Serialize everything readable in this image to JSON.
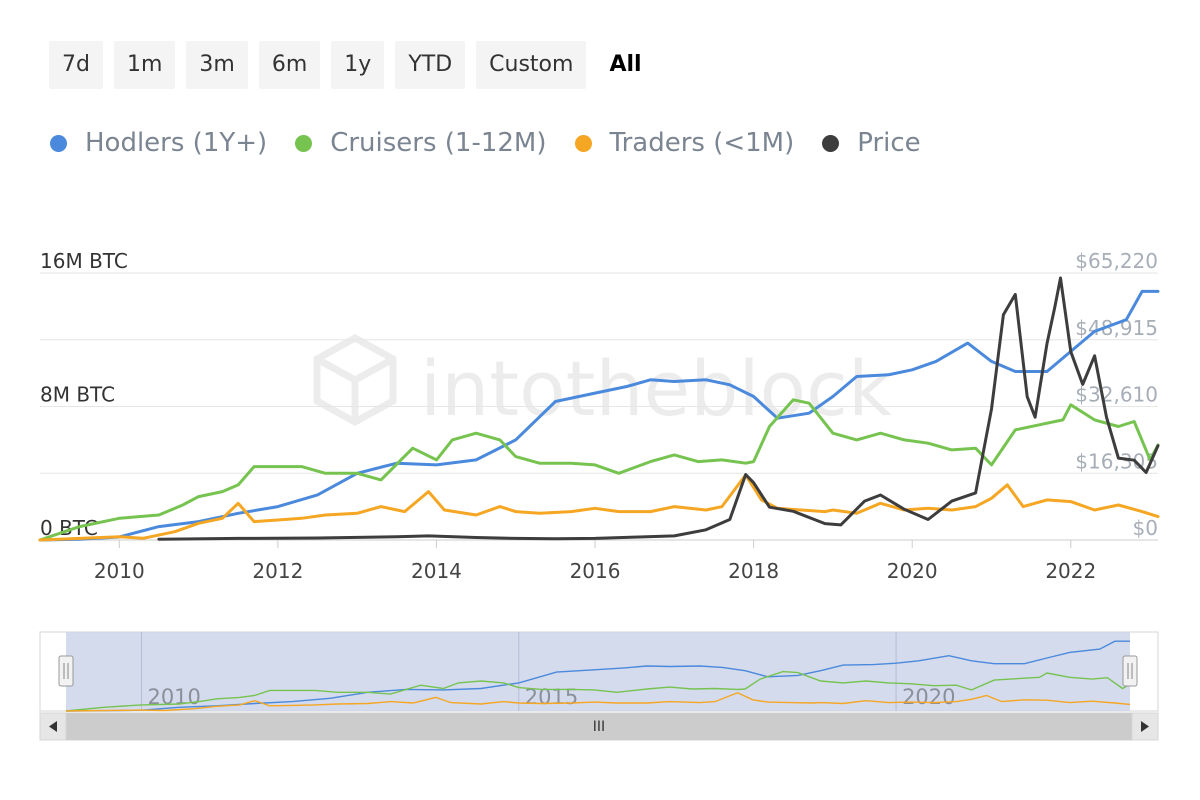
{
  "range_selector": {
    "buttons": [
      "7d",
      "1m",
      "3m",
      "6m",
      "1y",
      "YTD",
      "Custom",
      "All"
    ],
    "active": "All"
  },
  "colors": {
    "hodlers": "#4a89dc",
    "cruisers": "#76c350",
    "traders": "#f5a623",
    "price": "#3d3d3d"
  },
  "chart_data": {
    "type": "line",
    "xlabel": "",
    "ylabel": "",
    "legend_position": "top-left",
    "x_range": [
      2009.0,
      2023.1
    ],
    "x_ticks": [
      "2010",
      "2012",
      "2014",
      "2016",
      "2018",
      "2020",
      "2022"
    ],
    "y_left": {
      "range": [
        0,
        16000000
      ],
      "ticks": [
        "0 BTC",
        "8M BTC",
        "16M BTC"
      ]
    },
    "y_right": {
      "range": [
        0,
        65220
      ],
      "ticks": [
        "$0",
        "$16,305",
        "$32,610",
        "$48,915",
        "$65,220"
      ]
    },
    "watermark": "intotheblock",
    "series": [
      {
        "name": "Hodlers (1Y+)",
        "axis": "left",
        "color": "#4a89dc",
        "points": [
          [
            2009.0,
            0
          ],
          [
            2009.5,
            50000
          ],
          [
            2010.0,
            180000
          ],
          [
            2010.5,
            800000
          ],
          [
            2011.0,
            1100000
          ],
          [
            2011.5,
            1600000
          ],
          [
            2012.0,
            2000000
          ],
          [
            2012.5,
            2700000
          ],
          [
            2013.0,
            4000000
          ],
          [
            2013.5,
            4600000
          ],
          [
            2014.0,
            4500000
          ],
          [
            2014.5,
            4800000
          ],
          [
            2015.0,
            6000000
          ],
          [
            2015.5,
            8300000
          ],
          [
            2016.0,
            8800000
          ],
          [
            2016.4,
            9200000
          ],
          [
            2016.7,
            9600000
          ],
          [
            2017.0,
            9500000
          ],
          [
            2017.4,
            9600000
          ],
          [
            2017.7,
            9300000
          ],
          [
            2018.0,
            8600000
          ],
          [
            2018.3,
            7300000
          ],
          [
            2018.7,
            7600000
          ],
          [
            2019.0,
            8600000
          ],
          [
            2019.3,
            9800000
          ],
          [
            2019.7,
            9900000
          ],
          [
            2020.0,
            10200000
          ],
          [
            2020.3,
            10700000
          ],
          [
            2020.7,
            11800000
          ],
          [
            2021.0,
            10700000
          ],
          [
            2021.3,
            10100000
          ],
          [
            2021.7,
            10100000
          ],
          [
            2022.0,
            11300000
          ],
          [
            2022.3,
            12500000
          ],
          [
            2022.7,
            13200000
          ],
          [
            2022.9,
            14900000
          ],
          [
            2023.1,
            14900000
          ]
        ]
      },
      {
        "name": "Cruisers (1-12M)",
        "axis": "left",
        "color": "#76c350",
        "points": [
          [
            2009.0,
            0
          ],
          [
            2009.5,
            800000
          ],
          [
            2010.0,
            1300000
          ],
          [
            2010.5,
            1500000
          ],
          [
            2010.8,
            2100000
          ],
          [
            2011.0,
            2600000
          ],
          [
            2011.3,
            2900000
          ],
          [
            2011.5,
            3300000
          ],
          [
            2011.7,
            4400000
          ],
          [
            2012.0,
            4400000
          ],
          [
            2012.3,
            4400000
          ],
          [
            2012.6,
            4000000
          ],
          [
            2013.0,
            4000000
          ],
          [
            2013.3,
            3600000
          ],
          [
            2013.7,
            5500000
          ],
          [
            2014.0,
            4800000
          ],
          [
            2014.2,
            6000000
          ],
          [
            2014.5,
            6400000
          ],
          [
            2014.8,
            6000000
          ],
          [
            2015.0,
            5000000
          ],
          [
            2015.3,
            4600000
          ],
          [
            2015.7,
            4600000
          ],
          [
            2016.0,
            4500000
          ],
          [
            2016.3,
            4000000
          ],
          [
            2016.7,
            4700000
          ],
          [
            2017.0,
            5100000
          ],
          [
            2017.3,
            4700000
          ],
          [
            2017.6,
            4800000
          ],
          [
            2017.9,
            4600000
          ],
          [
            2018.0,
            4700000
          ],
          [
            2018.2,
            6800000
          ],
          [
            2018.5,
            8400000
          ],
          [
            2018.7,
            8200000
          ],
          [
            2019.0,
            6400000
          ],
          [
            2019.3,
            6000000
          ],
          [
            2019.6,
            6400000
          ],
          [
            2019.9,
            6000000
          ],
          [
            2020.2,
            5800000
          ],
          [
            2020.5,
            5400000
          ],
          [
            2020.8,
            5500000
          ],
          [
            2021.0,
            4500000
          ],
          [
            2021.3,
            6600000
          ],
          [
            2021.7,
            7000000
          ],
          [
            2021.9,
            7200000
          ],
          [
            2022.0,
            8100000
          ],
          [
            2022.3,
            7200000
          ],
          [
            2022.6,
            6800000
          ],
          [
            2022.8,
            7100000
          ],
          [
            2023.0,
            4800000
          ],
          [
            2023.1,
            5700000
          ]
        ]
      },
      {
        "name": "Traders (<1M)",
        "axis": "left",
        "color": "#f5a623",
        "points": [
          [
            2009.0,
            0
          ],
          [
            2010.0,
            200000
          ],
          [
            2010.3,
            100000
          ],
          [
            2010.7,
            500000
          ],
          [
            2011.0,
            1000000
          ],
          [
            2011.3,
            1300000
          ],
          [
            2011.5,
            2200000
          ],
          [
            2011.7,
            1100000
          ],
          [
            2012.0,
            1200000
          ],
          [
            2012.3,
            1300000
          ],
          [
            2012.6,
            1500000
          ],
          [
            2013.0,
            1600000
          ],
          [
            2013.3,
            2000000
          ],
          [
            2013.6,
            1700000
          ],
          [
            2013.9,
            2900000
          ],
          [
            2014.1,
            1800000
          ],
          [
            2014.5,
            1500000
          ],
          [
            2014.8,
            2000000
          ],
          [
            2015.0,
            1700000
          ],
          [
            2015.3,
            1600000
          ],
          [
            2015.7,
            1700000
          ],
          [
            2016.0,
            1900000
          ],
          [
            2016.3,
            1700000
          ],
          [
            2016.7,
            1700000
          ],
          [
            2017.0,
            2000000
          ],
          [
            2017.4,
            1800000
          ],
          [
            2017.6,
            2000000
          ],
          [
            2017.9,
            3900000
          ],
          [
            2018.1,
            2400000
          ],
          [
            2018.3,
            1900000
          ],
          [
            2018.6,
            1800000
          ],
          [
            2018.9,
            1700000
          ],
          [
            2019.0,
            1800000
          ],
          [
            2019.3,
            1600000
          ],
          [
            2019.6,
            2200000
          ],
          [
            2019.9,
            1800000
          ],
          [
            2020.2,
            1900000
          ],
          [
            2020.5,
            1800000
          ],
          [
            2020.8,
            2000000
          ],
          [
            2021.0,
            2500000
          ],
          [
            2021.2,
            3300000
          ],
          [
            2021.4,
            2000000
          ],
          [
            2021.7,
            2400000
          ],
          [
            2022.0,
            2300000
          ],
          [
            2022.3,
            1800000
          ],
          [
            2022.6,
            2100000
          ],
          [
            2022.9,
            1700000
          ],
          [
            2023.1,
            1400000
          ]
        ]
      },
      {
        "name": "Price",
        "axis": "right",
        "color": "#3d3d3d",
        "points": [
          [
            2010.5,
            200
          ],
          [
            2011.5,
            400
          ],
          [
            2012.5,
            500
          ],
          [
            2013.5,
            800
          ],
          [
            2013.9,
            1000
          ],
          [
            2014.5,
            600
          ],
          [
            2015.0,
            400
          ],
          [
            2015.5,
            300
          ],
          [
            2016.0,
            400
          ],
          [
            2016.5,
            700
          ],
          [
            2017.0,
            1000
          ],
          [
            2017.4,
            2500
          ],
          [
            2017.7,
            5000
          ],
          [
            2017.9,
            16000
          ],
          [
            2018.0,
            14000
          ],
          [
            2018.2,
            8000
          ],
          [
            2018.5,
            7000
          ],
          [
            2018.9,
            4000
          ],
          [
            2019.1,
            3700
          ],
          [
            2019.4,
            9500
          ],
          [
            2019.6,
            11000
          ],
          [
            2019.9,
            7500
          ],
          [
            2020.2,
            5000
          ],
          [
            2020.5,
            9500
          ],
          [
            2020.8,
            11500
          ],
          [
            2021.0,
            32000
          ],
          [
            2021.15,
            55000
          ],
          [
            2021.3,
            60000
          ],
          [
            2021.45,
            35000
          ],
          [
            2021.55,
            30000
          ],
          [
            2021.7,
            48000
          ],
          [
            2021.8,
            57000
          ],
          [
            2021.87,
            64000
          ],
          [
            2022.0,
            46000
          ],
          [
            2022.15,
            38000
          ],
          [
            2022.3,
            45000
          ],
          [
            2022.45,
            30000
          ],
          [
            2022.6,
            20000
          ],
          [
            2022.8,
            19500
          ],
          [
            2022.95,
            16500
          ],
          [
            2023.1,
            23000
          ]
        ]
      }
    ]
  },
  "navigator": {
    "x_ticks": [
      "2010",
      "2015",
      "2020"
    ],
    "x_tick_years": [
      2010,
      2015,
      2020
    ],
    "scrollbar_grip": "III"
  }
}
